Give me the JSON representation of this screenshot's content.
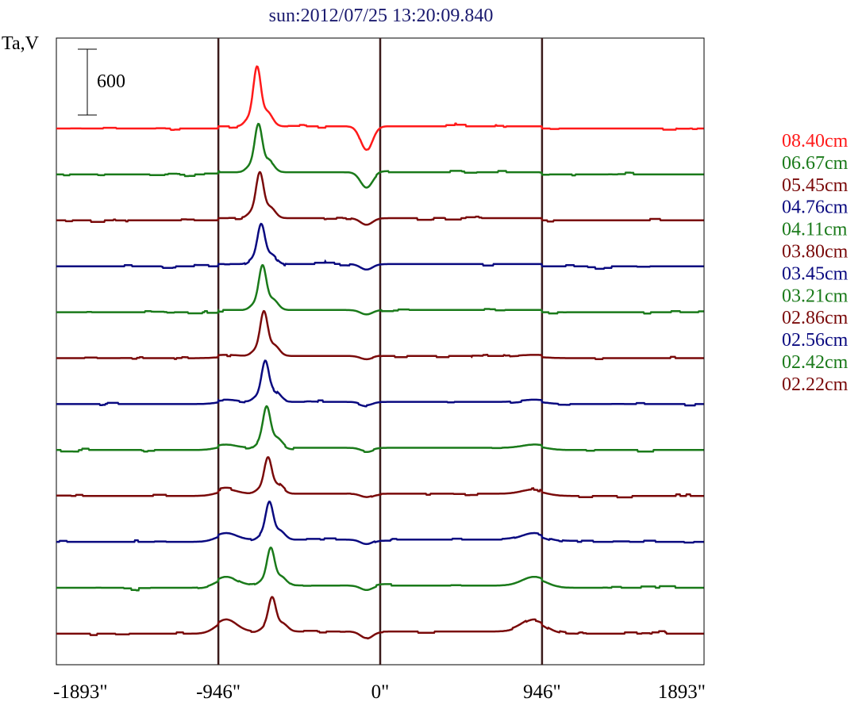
{
  "chart_data": {
    "type": "line",
    "title": "sun:2012/07/25 13:20:09.840",
    "title_color": "#1a1a6e",
    "ylabel": "Ta,V",
    "scale_bar_label": "600",
    "scale_bar_value": 600,
    "xlim": [
      -1893,
      1893
    ],
    "x_ticks": [
      {
        "value": -1893,
        "label": "-1893\""
      },
      {
        "value": -946,
        "label": "-946\""
      },
      {
        "value": 0,
        "label": "0\""
      },
      {
        "value": 946,
        "label": "946\""
      },
      {
        "value": 1893,
        "label": "1893\""
      }
    ],
    "vertical_lines": [
      -946,
      0,
      946
    ],
    "vertical_line_color": "#3a1a1a",
    "series": [
      {
        "name": "08.40cm",
        "color": "#ff1a1a",
        "peak": 520,
        "dip": -220,
        "limb": 0
      },
      {
        "name": "06.67cm",
        "color": "#1a7a1a",
        "peak": 420,
        "dip": -140,
        "limb": 0
      },
      {
        "name": "05.45cm",
        "color": "#7a0a0a",
        "peak": 400,
        "dip": -60,
        "limb": 0
      },
      {
        "name": "04.76cm",
        "color": "#0a0a80",
        "peak": 350,
        "dip": -50,
        "limb": 0
      },
      {
        "name": "04.11cm",
        "color": "#1a7a1a",
        "peak": 390,
        "dip": -40,
        "limb": 0
      },
      {
        "name": "03.80cm",
        "color": "#7a0a0a",
        "peak": 390,
        "dip": -30,
        "limb": 10
      },
      {
        "name": "03.45cm",
        "color": "#0a0a80",
        "peak": 360,
        "dip": -30,
        "limb": 20
      },
      {
        "name": "03.21cm",
        "color": "#1a7a1a",
        "peak": 360,
        "dip": -30,
        "limb": 30
      },
      {
        "name": "02.86cm",
        "color": "#7a0a0a",
        "peak": 320,
        "dip": -30,
        "limb": 40
      },
      {
        "name": "02.56cm",
        "color": "#0a0a80",
        "peak": 330,
        "dip": -40,
        "limb": 60
      },
      {
        "name": "02.42cm",
        "color": "#1a7a1a",
        "peak": 330,
        "dip": -40,
        "limb": 80
      },
      {
        "name": "02.22cm",
        "color": "#7a0a0a",
        "peak": 300,
        "dip": -60,
        "limb": 110
      }
    ]
  }
}
